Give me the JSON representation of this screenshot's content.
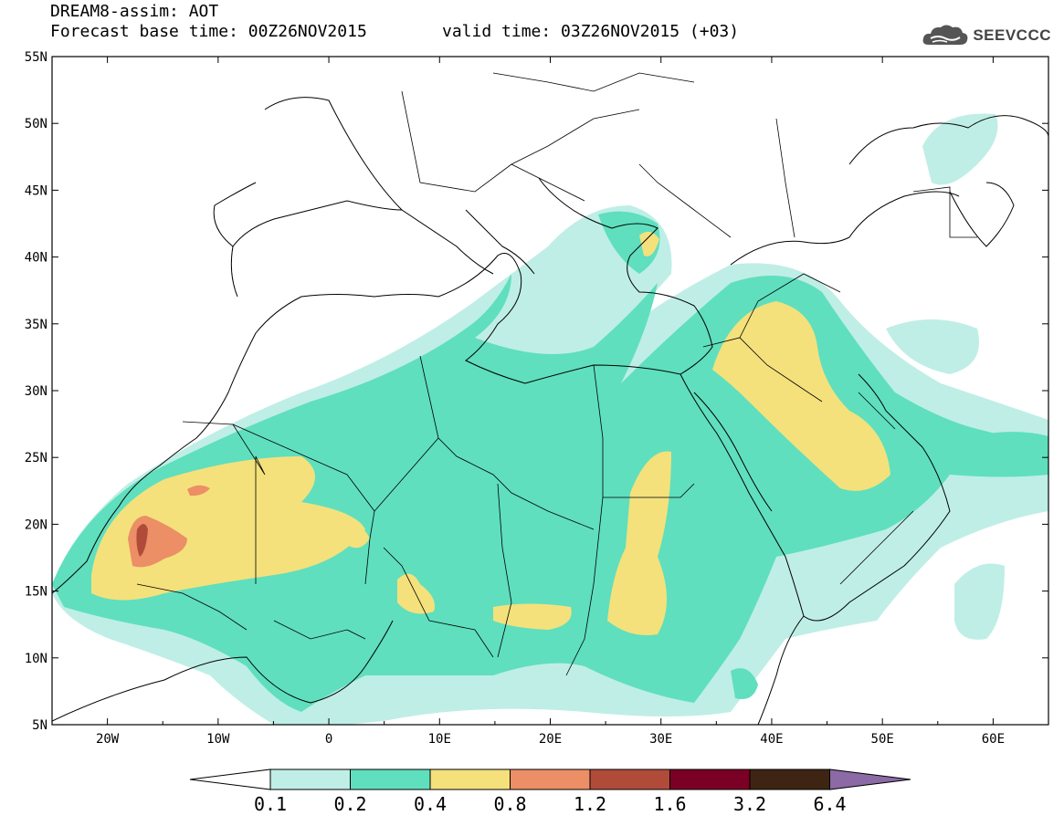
{
  "title": {
    "line1": "DREAM8-assim: AOT",
    "line2": "Forecast base time: 00Z26NOV2015",
    "valid": "valid time: 03Z26NOV2015 (+03)"
  },
  "logo": {
    "text": "SEEVCCC",
    "icon": "cloud-icon"
  },
  "map": {
    "lon_range": [
      -25,
      65
    ],
    "lat_range": [
      5,
      55
    ],
    "lat_ticks": [
      "55N",
      "50N",
      "45N",
      "40N",
      "35N",
      "30N",
      "25N",
      "20N",
      "15N",
      "10N",
      "5N"
    ],
    "lon_ticks": [
      "20W",
      "10W",
      "0",
      "10E",
      "20E",
      "30E",
      "40E",
      "50E",
      "60E"
    ]
  },
  "colorbar": {
    "labels": [
      "0.1",
      "0.2",
      "0.4",
      "0.8",
      "1.2",
      "1.6",
      "3.2",
      "6.4"
    ],
    "colors": [
      "#ffffff",
      "#bfeee6",
      "#5fdfbd",
      "#f4e17c",
      "#ec8e66",
      "#b04b3a",
      "#7a0025",
      "#3e2413",
      "#8b6aa5"
    ]
  }
}
